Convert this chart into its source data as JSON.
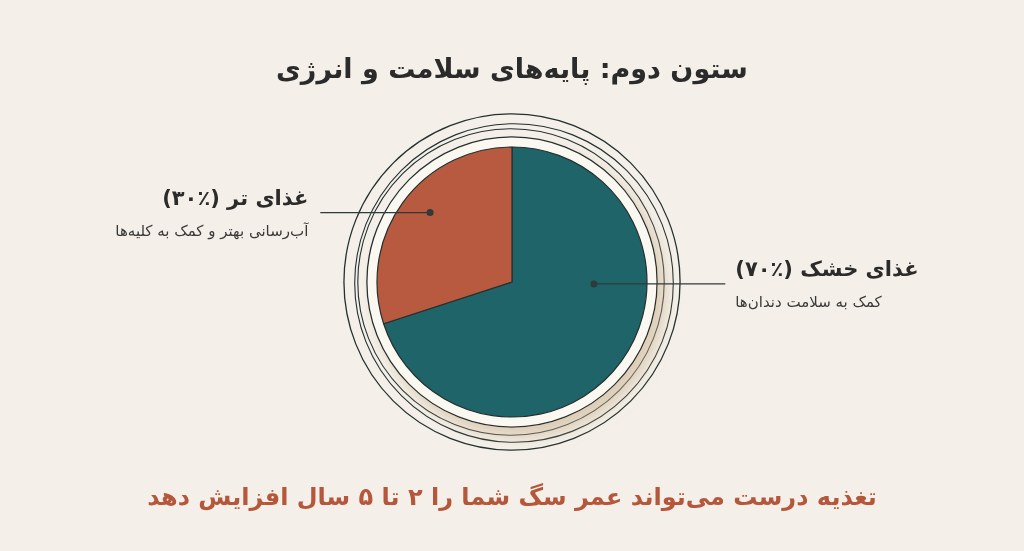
{
  "chart_data": {
    "type": "pie",
    "title": "ستون دوم: پایه‌های سلامت و انرژی",
    "categories": [
      "غذای خشک",
      "غذای تر"
    ],
    "values": [
      70,
      30
    ],
    "colors": [
      "#1e6469",
      "#b85a3f"
    ],
    "value_labels": [
      "(٪۷۰)",
      "(٪۳۰)"
    ],
    "annotations": [
      "کمک به سلامت دندان‌ها",
      "آب‌رسانی بهتر و کمک به کلیه‌ها",
      "تغذیه درست می‌تواند عمر سگ شما را ۲ تا ۵ سال افزایش دهد"
    ]
  }
}
